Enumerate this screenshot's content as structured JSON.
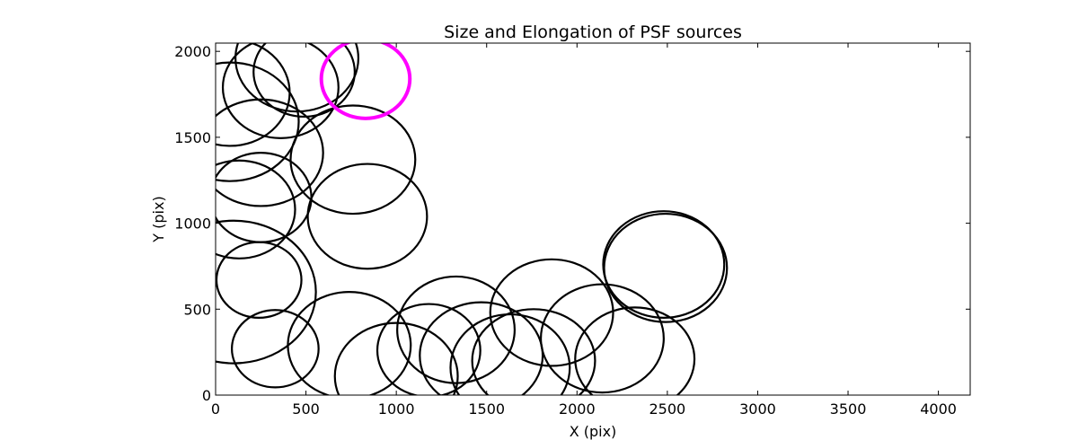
{
  "chart_data": {
    "type": "scatter",
    "title": "Size and Elongation of PSF sources",
    "xlabel": "X (pix)",
    "ylabel": "Y (pix)",
    "xlim": [
      0,
      4176
    ],
    "ylim": [
      0,
      2048
    ],
    "xticks": [
      0,
      500,
      1000,
      1500,
      2000,
      2500,
      3000,
      3500,
      4000
    ],
    "yticks": [
      0,
      500,
      1000,
      1500,
      2000
    ],
    "grid": false,
    "marker": "ellipse (outline)",
    "series": [
      {
        "color": "#000000",
        "points": [
          {
            "x": 450,
            "y": 1960,
            "w": 680,
            "h": 620
          },
          {
            "x": 490,
            "y": 1880,
            "w": 560,
            "h": 520
          },
          {
            "x": 360,
            "y": 1790,
            "w": 640,
            "h": 590
          },
          {
            "x": 80,
            "y": 1760,
            "w": 660,
            "h": 620
          },
          {
            "x": 80,
            "y": 1590,
            "w": 760,
            "h": 690
          },
          {
            "x": 250,
            "y": 1410,
            "w": 690,
            "h": 620
          },
          {
            "x": 760,
            "y": 1370,
            "w": 690,
            "h": 630
          },
          {
            "x": 250,
            "y": 1150,
            "w": 560,
            "h": 520
          },
          {
            "x": 130,
            "y": 1080,
            "w": 620,
            "h": 570
          },
          {
            "x": 840,
            "y": 1040,
            "w": 660,
            "h": 610
          },
          {
            "x": 240,
            "y": 670,
            "w": 470,
            "h": 440
          },
          {
            "x": 100,
            "y": 600,
            "w": 910,
            "h": 830
          },
          {
            "x": 330,
            "y": 270,
            "w": 480,
            "h": 450
          },
          {
            "x": 740,
            "y": 290,
            "w": 680,
            "h": 620
          },
          {
            "x": 1000,
            "y": 110,
            "w": 680,
            "h": 620
          },
          {
            "x": 1180,
            "y": 260,
            "w": 570,
            "h": 540
          },
          {
            "x": 1330,
            "y": 380,
            "w": 650,
            "h": 620
          },
          {
            "x": 1470,
            "y": 230,
            "w": 680,
            "h": 620
          },
          {
            "x": 1760,
            "y": 200,
            "w": 680,
            "h": 600
          },
          {
            "x": 1630,
            "y": 160,
            "w": 660,
            "h": 620
          },
          {
            "x": 1860,
            "y": 480,
            "w": 680,
            "h": 620
          },
          {
            "x": 2140,
            "y": 330,
            "w": 680,
            "h": 630
          },
          {
            "x": 2320,
            "y": 210,
            "w": 660,
            "h": 600
          },
          {
            "x": 2480,
            "y": 760,
            "w": 670,
            "h": 620
          },
          {
            "x": 2490,
            "y": 740,
            "w": 680,
            "h": 630
          }
        ]
      },
      {
        "color": "#ff00ff",
        "points": [
          {
            "x": 830,
            "y": 1840,
            "w": 490,
            "h": 460
          }
        ]
      }
    ]
  }
}
